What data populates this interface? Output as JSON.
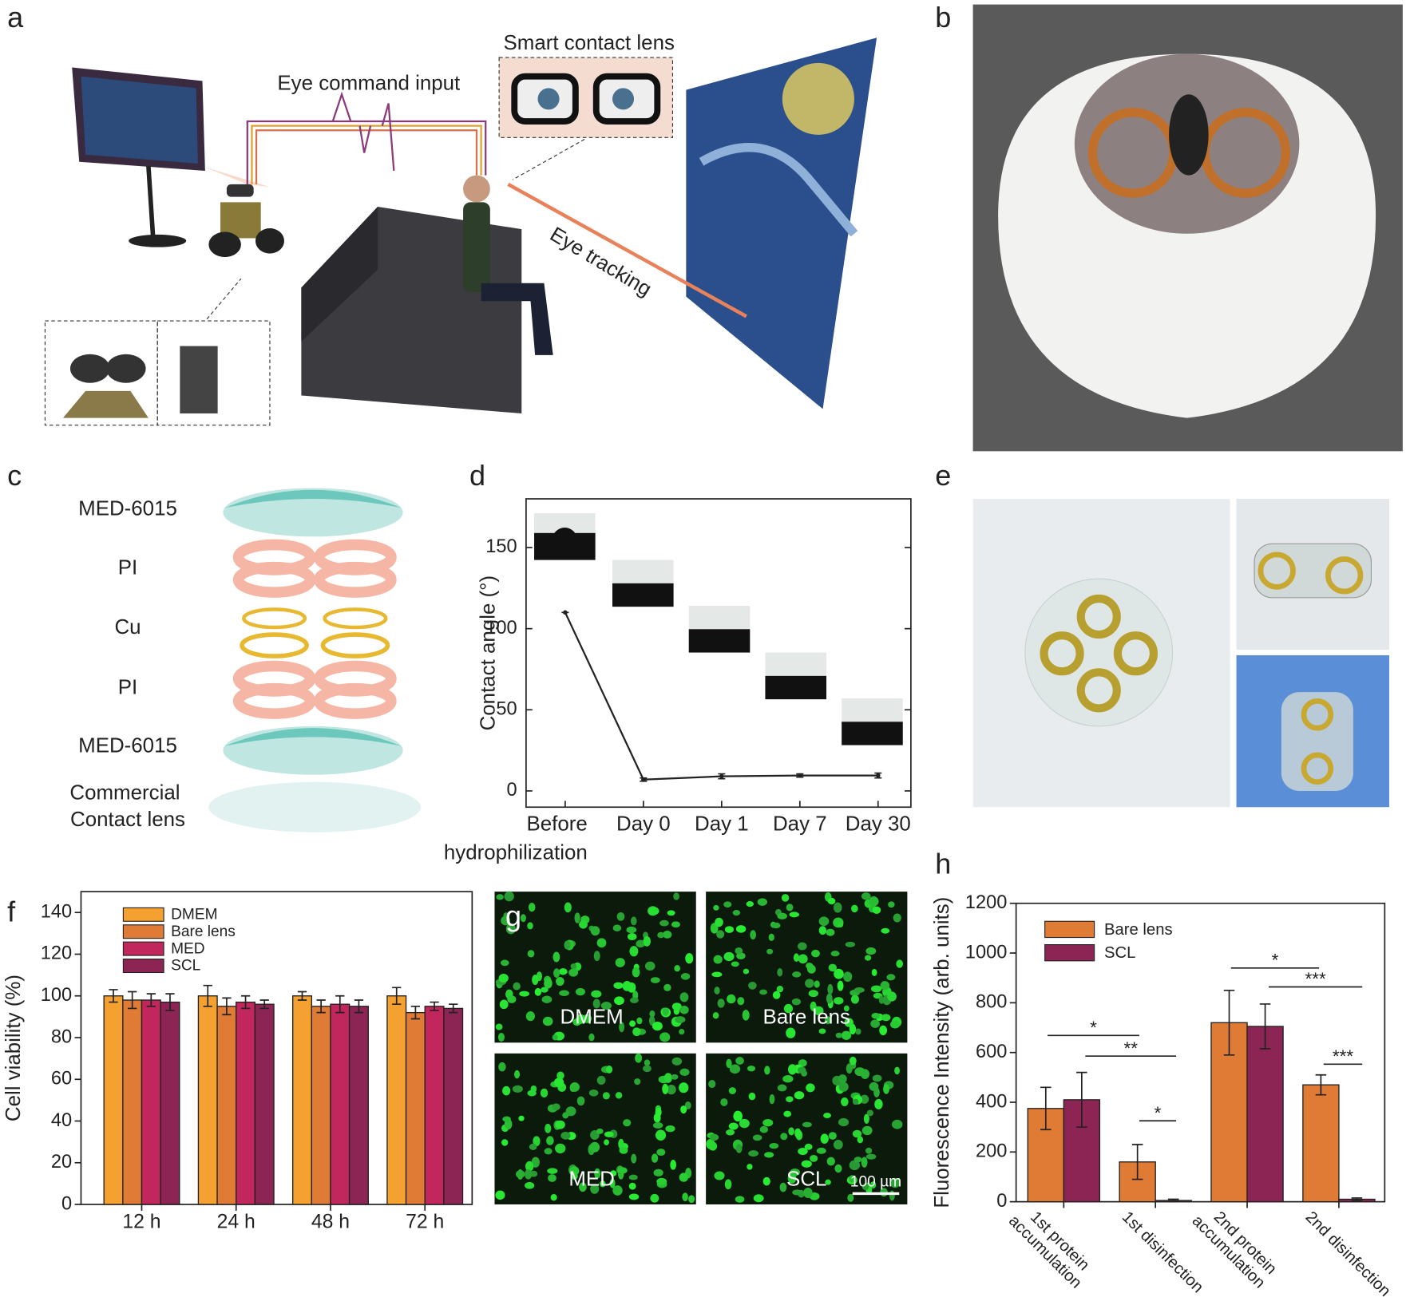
{
  "panel_labels": [
    "a",
    "b",
    "c",
    "d",
    "e",
    "f",
    "g",
    "h"
  ],
  "schematic": {
    "labels": [
      "Eye command input",
      "Smart contact lens",
      "Eye tracking"
    ]
  },
  "layers": [
    "MED-6015",
    "PI",
    "Cu",
    "PI",
    "MED-6015",
    "Commercial Contact lens"
  ],
  "micrographs": {
    "labels": [
      "DMEM",
      "Bare lens",
      "MED",
      "SCL"
    ],
    "scale_bar": "100 µm"
  },
  "chart_data": [
    {
      "type": "line",
      "categories": [
        "Before hydrophilization",
        "Day 0",
        "Day 1",
        "Day 7",
        "Day 30"
      ],
      "values": [
        110,
        7,
        9,
        9.5,
        9.5
      ],
      "errors": [
        0,
        1,
        1.5,
        1,
        1.5
      ],
      "color": "#222222",
      "ylabel": "Contact angle (°)",
      "ylim": [
        -10,
        180
      ],
      "yticks": [
        0,
        50,
        100,
        150
      ]
    },
    {
      "type": "bar",
      "categories": [
        "12 h",
        "24 h",
        "48 h",
        "72 h"
      ],
      "series": [
        {
          "name": "DMEM",
          "color": "#f5a132",
          "values": [
            100,
            100,
            100,
            100
          ],
          "errors": [
            3,
            5,
            2,
            4
          ]
        },
        {
          "name": "Bare lens",
          "color": "#e07b36",
          "values": [
            98,
            95,
            95,
            92
          ],
          "errors": [
            4,
            4,
            3,
            3
          ]
        },
        {
          "name": "MED",
          "color": "#c1275c",
          "values": [
            98,
            97,
            96,
            95
          ],
          "errors": [
            3,
            3,
            4,
            2
          ]
        },
        {
          "name": "SCL",
          "color": "#8c2454",
          "values": [
            97,
            96,
            95,
            94
          ],
          "errors": [
            4,
            2,
            3,
            2
          ]
        }
      ],
      "ylabel": "Cell viability (%)",
      "ylim": [
        0,
        150
      ],
      "yticks": [
        0,
        20,
        40,
        60,
        80,
        100,
        120,
        140
      ],
      "legend": "upper left"
    },
    {
      "type": "bar",
      "categories": [
        "1st protein accumulation",
        "1st disinfection",
        "2nd protein accumulation",
        "2nd disinfection"
      ],
      "series": [
        {
          "name": "Bare lens",
          "color": "#e07b36",
          "values": [
            375,
            160,
            720,
            470
          ],
          "errors": [
            85,
            70,
            130,
            40
          ]
        },
        {
          "name": "SCL",
          "color": "#8c2454",
          "values": [
            410,
            5,
            705,
            10
          ],
          "errors": [
            110,
            5,
            90,
            5
          ]
        }
      ],
      "ylabel": "Fluorescence Intensity (arb. units)",
      "ylim": [
        0,
        1200
      ],
      "yticks": [
        0,
        200,
        400,
        600,
        800,
        1000,
        1200
      ],
      "legend": "upper left",
      "annotations": [
        "*",
        "**",
        "*",
        "*",
        "***",
        "***"
      ]
    }
  ]
}
